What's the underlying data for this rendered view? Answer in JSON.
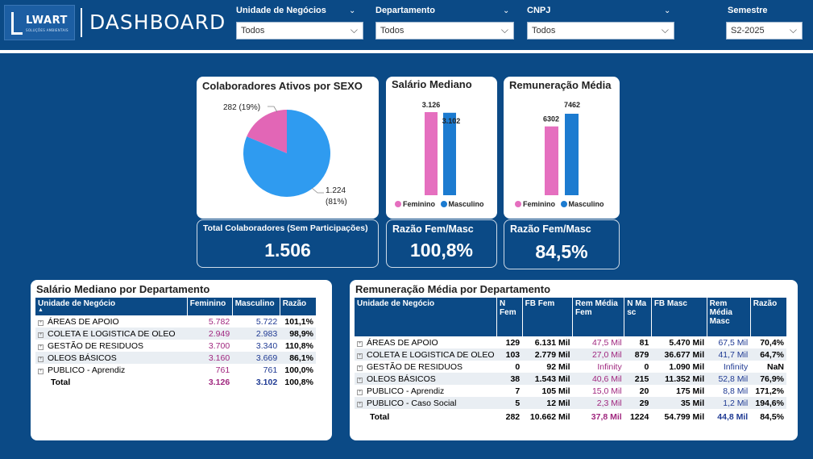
{
  "header": {
    "logo_text": "LWART",
    "logo_subtext": "SOLUÇÕES AMBIENTAIS",
    "title": "DASHBOARD"
  },
  "filters": {
    "unidade": {
      "label": "Unidade de Negócios",
      "value": "Todos"
    },
    "departamento": {
      "label": "Departamento",
      "value": "Todos"
    },
    "cnpj": {
      "label": "CNPJ",
      "value": "Todos"
    },
    "semestre": {
      "label": "Semestre",
      "value": "S2-2025"
    }
  },
  "colors": {
    "feminino": "#e56fbf",
    "masculino": "#1c7bd0",
    "pie_male": "#2f9bf0",
    "pie_female": "#e266b6",
    "header_bg": "#0b4a86"
  },
  "sexo_card": {
    "title": "Colaboradores Ativos por SEXO",
    "female_label": "282 (19%)",
    "male_label_1": "1.224",
    "male_label_2": "(81%)"
  },
  "salario_card": {
    "title": "Salário Mediano",
    "fem_label": "3.126",
    "mas_label": "3.102"
  },
  "remuneracao_card": {
    "title": "Remuneração Média",
    "fem_label": "6302",
    "mas_label": "7462"
  },
  "legend": {
    "feminino": "Feminino",
    "masculino": "Masculino"
  },
  "kpis": {
    "total": {
      "title": "Total Colaboradores (Sem Participações)",
      "value": "1.506"
    },
    "razao_salario": {
      "title": "Razão Fem/Masc",
      "value": "100,8%"
    },
    "razao_remun": {
      "title": "Razão Fem/Masc",
      "value": "84,5%"
    }
  },
  "chart_data": [
    {
      "type": "pie",
      "title": "Colaboradores Ativos por SEXO",
      "categories": [
        "Feminino",
        "Masculino"
      ],
      "values": [
        282,
        1224
      ]
    },
    {
      "type": "bar",
      "title": "Salário Mediano",
      "categories": [
        "Feminino",
        "Masculino"
      ],
      "values": [
        3126,
        3102
      ]
    },
    {
      "type": "bar",
      "title": "Remuneração Média",
      "categories": [
        "Feminino",
        "Masculino"
      ],
      "values": [
        6302,
        7462
      ]
    }
  ],
  "salario_table": {
    "title": "Salário Mediano por Departamento",
    "columns": [
      "Unidade de Negócio",
      "Feminino",
      "Masculino",
      "Razão"
    ],
    "rows": [
      {
        "name": "ÁREAS DE APOIO",
        "fem": "5.782",
        "mas": "5.722",
        "razao": "101,1%"
      },
      {
        "name": "COLETA E LOGISTICA DE OLEO",
        "fem": "2.949",
        "mas": "2.983",
        "razao": "98,9%"
      },
      {
        "name": "GESTÃO DE RESIDUOS",
        "fem": "3.700",
        "mas": "3.340",
        "razao": "110,8%"
      },
      {
        "name": "OLEOS BÁSICOS",
        "fem": "3.160",
        "mas": "3.669",
        "razao": "86,1%"
      },
      {
        "name": "PUBLICO - Aprendiz",
        "fem": "761",
        "mas": "761",
        "razao": "100,0%"
      }
    ],
    "total": {
      "name": "Total",
      "fem": "3.126",
      "mas": "3.102",
      "razao": "100,8%"
    }
  },
  "remun_table": {
    "title": "Remuneração Média por Departamento",
    "columns": [
      "Unidade de Negócio",
      "N Fem",
      "FB Fem",
      "Rem Média Fem",
      "N Masc",
      "FB Masc",
      "Rem Média Masc",
      "Razão"
    ],
    "rows": [
      {
        "name": "ÁREAS DE APOIO",
        "nf": "129",
        "fbf": "6.131 Mil",
        "rmf": "47,5 Mil",
        "nm": "81",
        "fbm": "5.470 Mil",
        "rmm": "67,5 Mil",
        "razao": "70,4%"
      },
      {
        "name": "COLETA E LOGISTICA DE OLEO",
        "nf": "103",
        "fbf": "2.779 Mil",
        "rmf": "27,0 Mil",
        "nm": "879",
        "fbm": "36.677 Mil",
        "rmm": "41,7 Mil",
        "razao": "64,7%"
      },
      {
        "name": "GESTÃO DE RESIDUOS",
        "nf": "0",
        "fbf": "92 Mil",
        "rmf": "Infinity",
        "nm": "0",
        "fbm": "1.090 Mil",
        "rmm": "Infinity",
        "razao": "NaN"
      },
      {
        "name": "OLEOS BÁSICOS",
        "nf": "38",
        "fbf": "1.543 Mil",
        "rmf": "40,6 Mil",
        "nm": "215",
        "fbm": "11.352 Mil",
        "rmm": "52,8 Mil",
        "razao": "76,9%"
      },
      {
        "name": "PUBLICO - Aprendiz",
        "nf": "7",
        "fbf": "105 Mil",
        "rmf": "15,0 Mil",
        "nm": "20",
        "fbm": "175 Mil",
        "rmm": "8,8 Mil",
        "razao": "171,2%"
      },
      {
        "name": "PUBLICO - Caso Social",
        "nf": "5",
        "fbf": "12 Mil",
        "rmf": "2,3 Mil",
        "nm": "29",
        "fbm": "35 Mil",
        "rmm": "1,2 Mil",
        "razao": "194,6%"
      }
    ],
    "total": {
      "name": "Total",
      "nf": "282",
      "fbf": "10.662 Mil",
      "rmf": "37,8 Mil",
      "nm": "1224",
      "fbm": "54.799 Mil",
      "rmm": "44,8 Mil",
      "razao": "84,5%"
    }
  }
}
